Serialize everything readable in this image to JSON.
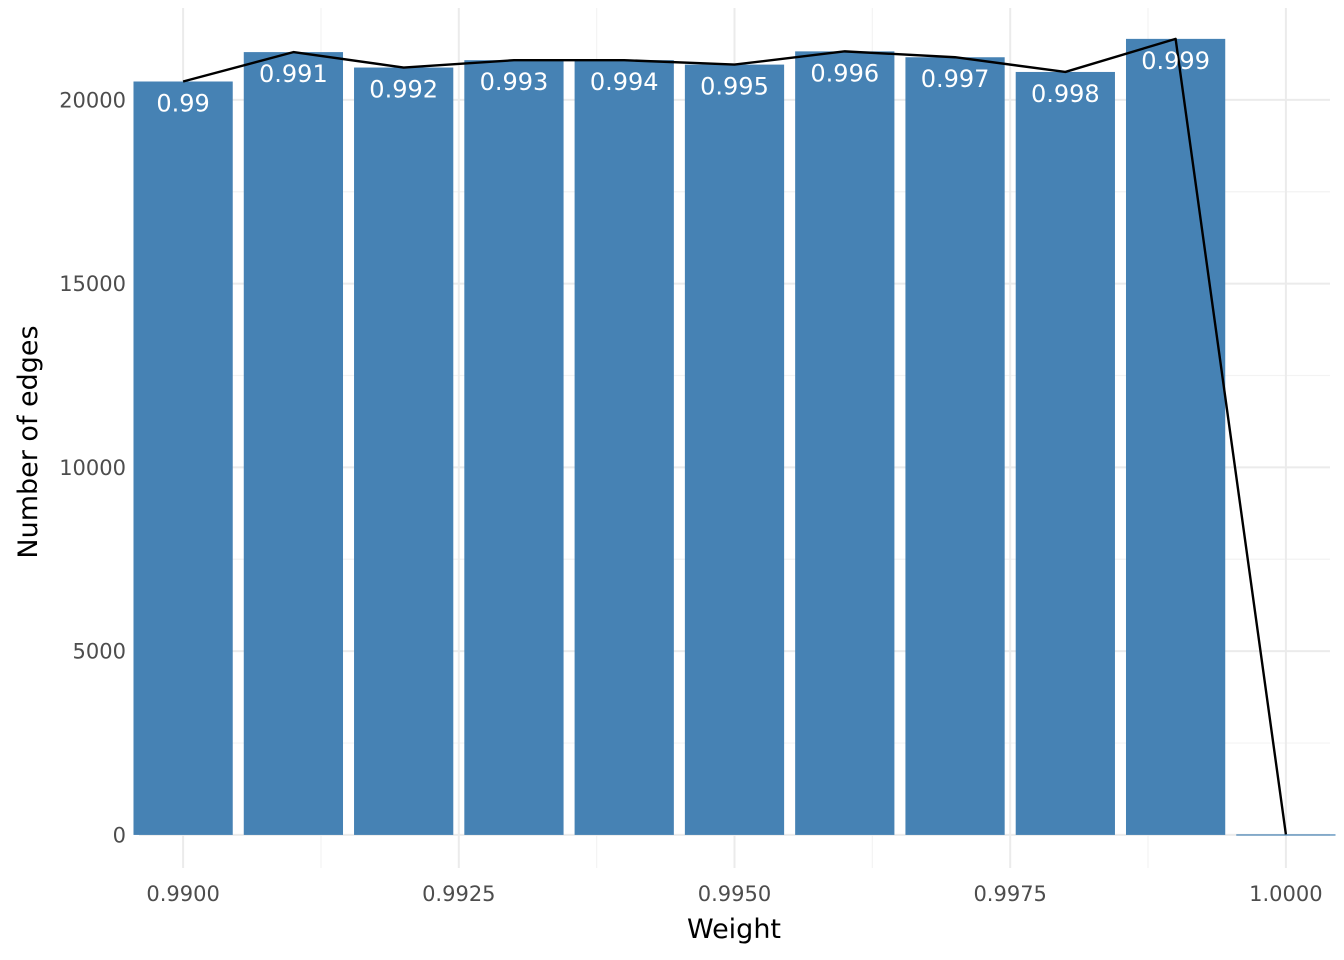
{
  "chart_data": {
    "type": "bar",
    "title": "",
    "xlabel": "Weight",
    "ylabel": "Number of edges",
    "x": [
      0.99,
      0.991,
      0.992,
      0.993,
      0.994,
      0.995,
      0.996,
      0.997,
      0.998,
      0.999,
      1.0
    ],
    "values": [
      20500,
      21300,
      20880,
      21080,
      21080,
      20960,
      21320,
      21160,
      20760,
      21660,
      15
    ],
    "bar_labels": [
      "0.99",
      "0.991",
      "0.992",
      "0.993",
      "0.994",
      "0.995",
      "0.996",
      "0.997",
      "0.998",
      "0.999",
      ""
    ],
    "overlay_line": true,
    "xlim": [
      0.9896,
      1.0004
    ],
    "ylim": [
      -900,
      22500
    ],
    "x_ticks": [
      0.99,
      0.9925,
      0.995,
      0.9975,
      1.0
    ],
    "x_tick_labels": [
      "0.9900",
      "0.9925",
      "0.9950",
      "0.9975",
      "1.0000"
    ],
    "y_ticks": [
      0,
      5000,
      10000,
      15000,
      20000
    ],
    "y_tick_labels": [
      "0",
      "5000",
      "10000",
      "15000",
      "20000"
    ],
    "grid": true,
    "legend": "none",
    "colors": {
      "bar": "#4682B4",
      "line": "#000000",
      "grid_major": "#EBEBEB",
      "grid_minor": "#F3F3F3",
      "bar_label": "#FFFFFF"
    }
  }
}
